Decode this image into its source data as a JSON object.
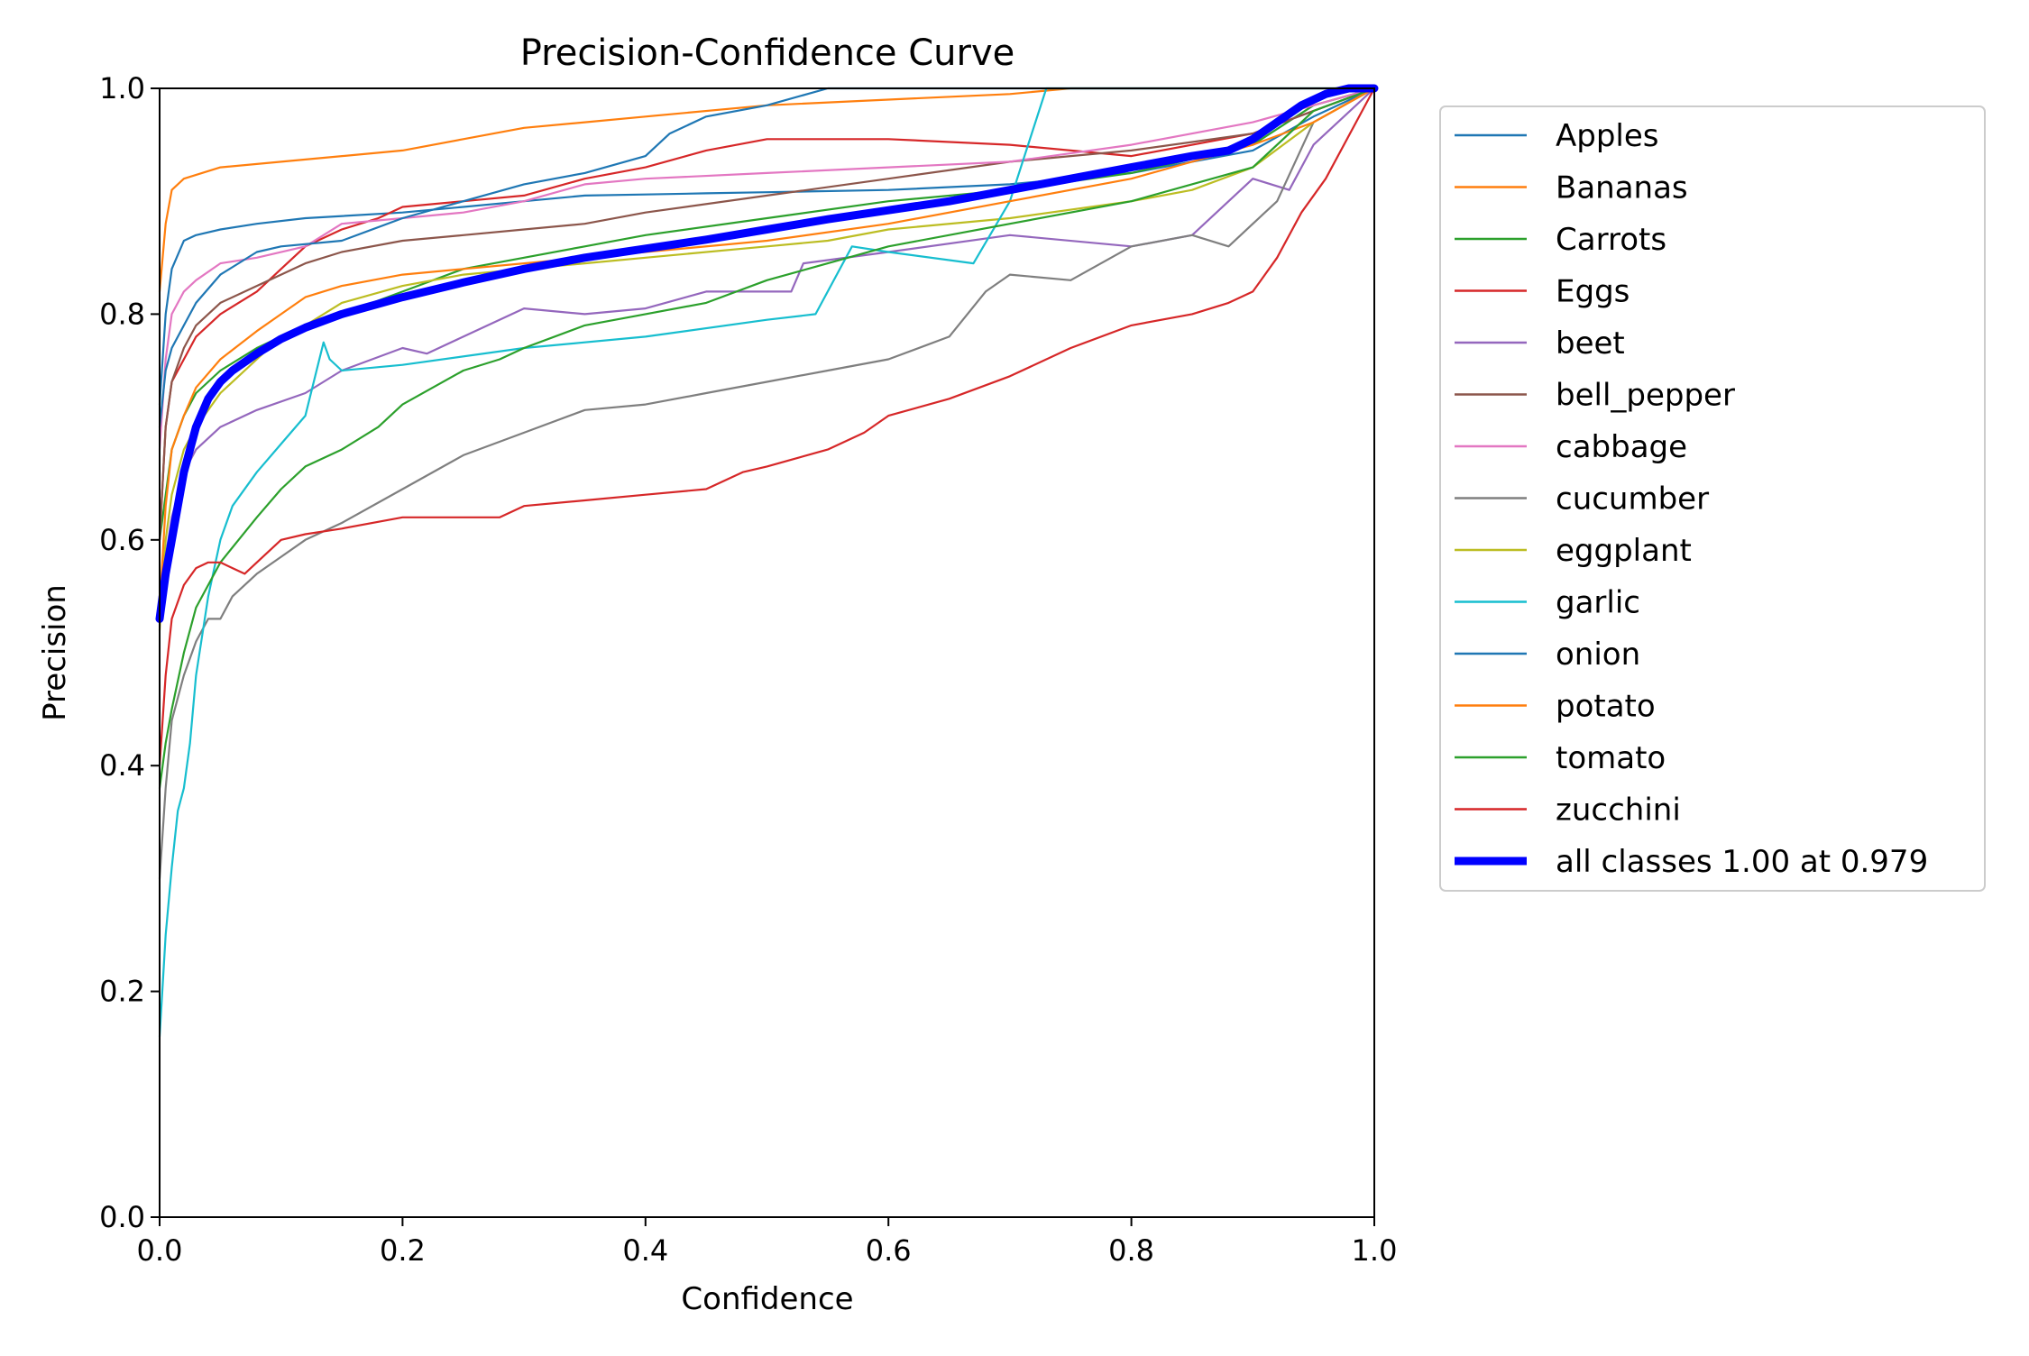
{
  "chart_data": {
    "type": "line",
    "title": "Precision-Confidence Curve",
    "xlabel": "Confidence",
    "ylabel": "Precision",
    "xlim": [
      0.0,
      1.0
    ],
    "ylim": [
      0.0,
      1.0
    ],
    "xticks": [
      "0.0",
      "0.2",
      "0.4",
      "0.6",
      "0.8",
      "1.0"
    ],
    "yticks": [
      "0.0",
      "0.2",
      "0.4",
      "0.6",
      "0.8",
      "1.0"
    ],
    "grid": false,
    "legend_position": "outside-right",
    "series": [
      {
        "name": "Apples",
        "color": "#1f77b4",
        "x": [
          0.0,
          0.005,
          0.01,
          0.02,
          0.03,
          0.05,
          0.08,
          0.12,
          0.2,
          0.25,
          0.3,
          0.35,
          0.4,
          0.45,
          0.5,
          0.6,
          0.7,
          0.8,
          0.9,
          0.95,
          1.0
        ],
        "y": [
          0.72,
          0.8,
          0.84,
          0.865,
          0.87,
          0.875,
          0.88,
          0.885,
          0.89,
          0.895,
          0.9,
          0.905,
          0.906,
          0.907,
          0.908,
          0.91,
          0.915,
          0.925,
          0.945,
          0.975,
          1.0
        ]
      },
      {
        "name": "Bananas",
        "color": "#ff7f0e",
        "x": [
          0.0,
          0.005,
          0.01,
          0.02,
          0.05,
          0.1,
          0.2,
          0.25,
          0.3,
          0.35,
          0.4,
          0.5,
          0.6,
          0.7,
          0.75,
          0.8,
          1.0
        ],
        "y": [
          0.82,
          0.88,
          0.91,
          0.92,
          0.93,
          0.935,
          0.945,
          0.955,
          0.965,
          0.97,
          0.975,
          0.985,
          0.99,
          0.995,
          1.0,
          1.0,
          1.0
        ]
      },
      {
        "name": "Carrots",
        "color": "#2ca02c",
        "x": [
          0.0,
          0.01,
          0.02,
          0.03,
          0.05,
          0.08,
          0.1,
          0.15,
          0.2,
          0.25,
          0.3,
          0.35,
          0.4,
          0.5,
          0.6,
          0.7,
          0.8,
          0.9,
          0.95,
          1.0
        ],
        "y": [
          0.6,
          0.68,
          0.71,
          0.73,
          0.75,
          0.77,
          0.78,
          0.8,
          0.82,
          0.84,
          0.85,
          0.86,
          0.87,
          0.885,
          0.9,
          0.91,
          0.925,
          0.95,
          0.985,
          1.0
        ]
      },
      {
        "name": "Eggs",
        "color": "#d62728",
        "x": [
          0.0,
          0.005,
          0.01,
          0.02,
          0.03,
          0.05,
          0.08,
          0.1,
          0.12,
          0.15,
          0.18,
          0.2,
          0.25,
          0.3,
          0.35,
          0.4,
          0.45,
          0.5,
          0.6,
          0.7,
          0.8,
          0.9,
          0.95,
          1.0
        ],
        "y": [
          0.6,
          0.7,
          0.74,
          0.76,
          0.78,
          0.8,
          0.82,
          0.84,
          0.86,
          0.875,
          0.885,
          0.895,
          0.9,
          0.905,
          0.92,
          0.93,
          0.945,
          0.955,
          0.955,
          0.95,
          0.94,
          0.96,
          0.98,
          1.0
        ]
      },
      {
        "name": "beet",
        "color": "#9467bd",
        "x": [
          0.0,
          0.01,
          0.02,
          0.03,
          0.05,
          0.08,
          0.12,
          0.15,
          0.2,
          0.22,
          0.25,
          0.3,
          0.35,
          0.4,
          0.45,
          0.5,
          0.52,
          0.53,
          0.6,
          0.7,
          0.8,
          0.85,
          0.9,
          0.93,
          0.95,
          1.0
        ],
        "y": [
          0.55,
          0.62,
          0.66,
          0.68,
          0.7,
          0.715,
          0.73,
          0.75,
          0.77,
          0.765,
          0.78,
          0.805,
          0.8,
          0.805,
          0.82,
          0.82,
          0.82,
          0.845,
          0.855,
          0.87,
          0.86,
          0.87,
          0.92,
          0.91,
          0.95,
          1.0
        ]
      },
      {
        "name": "bell_pepper",
        "color": "#8c564b",
        "x": [
          0.0,
          0.005,
          0.01,
          0.02,
          0.03,
          0.05,
          0.08,
          0.1,
          0.12,
          0.15,
          0.2,
          0.25,
          0.3,
          0.35,
          0.4,
          0.5,
          0.6,
          0.7,
          0.8,
          0.9,
          0.95,
          1.0
        ],
        "y": [
          0.6,
          0.7,
          0.74,
          0.77,
          0.79,
          0.81,
          0.825,
          0.835,
          0.845,
          0.855,
          0.865,
          0.87,
          0.875,
          0.88,
          0.89,
          0.905,
          0.92,
          0.935,
          0.945,
          0.96,
          0.98,
          1.0
        ]
      },
      {
        "name": "cabbage",
        "color": "#e377c2",
        "x": [
          0.0,
          0.005,
          0.01,
          0.02,
          0.03,
          0.05,
          0.08,
          0.12,
          0.15,
          0.2,
          0.25,
          0.3,
          0.35,
          0.4,
          0.5,
          0.6,
          0.7,
          0.8,
          0.9,
          0.95,
          1.0
        ],
        "y": [
          0.68,
          0.76,
          0.8,
          0.82,
          0.83,
          0.845,
          0.85,
          0.86,
          0.88,
          0.885,
          0.89,
          0.9,
          0.915,
          0.92,
          0.925,
          0.93,
          0.935,
          0.95,
          0.97,
          0.985,
          1.0
        ]
      },
      {
        "name": "cucumber",
        "color": "#7f7f7f",
        "x": [
          0.0,
          0.005,
          0.01,
          0.02,
          0.03,
          0.04,
          0.05,
          0.06,
          0.08,
          0.1,
          0.12,
          0.15,
          0.2,
          0.25,
          0.3,
          0.35,
          0.4,
          0.45,
          0.5,
          0.55,
          0.6,
          0.65,
          0.68,
          0.7,
          0.75,
          0.8,
          0.85,
          0.88,
          0.9,
          0.92,
          0.95,
          1.0
        ],
        "y": [
          0.3,
          0.38,
          0.44,
          0.48,
          0.51,
          0.53,
          0.53,
          0.55,
          0.57,
          0.585,
          0.6,
          0.615,
          0.645,
          0.675,
          0.695,
          0.715,
          0.72,
          0.73,
          0.74,
          0.75,
          0.76,
          0.78,
          0.82,
          0.835,
          0.83,
          0.86,
          0.87,
          0.86,
          0.88,
          0.9,
          0.97,
          1.0
        ]
      },
      {
        "name": "eggplant",
        "color": "#bcbd22",
        "x": [
          0.0,
          0.005,
          0.01,
          0.02,
          0.03,
          0.05,
          0.08,
          0.1,
          0.12,
          0.15,
          0.2,
          0.25,
          0.3,
          0.35,
          0.4,
          0.5,
          0.55,
          0.6,
          0.7,
          0.8,
          0.85,
          0.9,
          0.95,
          1.0
        ],
        "y": [
          0.52,
          0.6,
          0.64,
          0.68,
          0.7,
          0.73,
          0.76,
          0.78,
          0.79,
          0.81,
          0.825,
          0.835,
          0.84,
          0.845,
          0.85,
          0.86,
          0.865,
          0.875,
          0.885,
          0.9,
          0.91,
          0.93,
          0.97,
          1.0
        ]
      },
      {
        "name": "garlic",
        "color": "#17becf",
        "x": [
          0.0,
          0.005,
          0.01,
          0.015,
          0.02,
          0.025,
          0.03,
          0.04,
          0.05,
          0.06,
          0.08,
          0.1,
          0.12,
          0.135,
          0.14,
          0.15,
          0.2,
          0.3,
          0.4,
          0.5,
          0.54,
          0.57,
          0.6,
          0.67,
          0.7,
          0.73,
          0.8,
          0.9,
          1.0
        ],
        "y": [
          0.16,
          0.25,
          0.31,
          0.36,
          0.38,
          0.42,
          0.48,
          0.55,
          0.6,
          0.63,
          0.66,
          0.685,
          0.71,
          0.775,
          0.76,
          0.75,
          0.755,
          0.77,
          0.78,
          0.795,
          0.8,
          0.86,
          0.855,
          0.845,
          0.9,
          1.0,
          1.0,
          1.0,
          1.0
        ]
      },
      {
        "name": "onion",
        "color": "#1f77b4",
        "x": [
          0.0,
          0.005,
          0.01,
          0.02,
          0.03,
          0.05,
          0.08,
          0.1,
          0.15,
          0.2,
          0.25,
          0.3,
          0.35,
          0.4,
          0.42,
          0.45,
          0.5,
          0.55,
          0.6,
          0.7,
          0.8,
          0.9,
          1.0
        ],
        "y": [
          0.7,
          0.75,
          0.77,
          0.79,
          0.81,
          0.835,
          0.855,
          0.86,
          0.865,
          0.885,
          0.9,
          0.915,
          0.925,
          0.94,
          0.96,
          0.975,
          0.985,
          1.0,
          1.0,
          1.0,
          1.0,
          1.0,
          1.0
        ]
      },
      {
        "name": "potato",
        "color": "#ff7f0e",
        "x": [
          0.0,
          0.005,
          0.01,
          0.02,
          0.03,
          0.05,
          0.08,
          0.1,
          0.12,
          0.15,
          0.2,
          0.25,
          0.3,
          0.4,
          0.5,
          0.6,
          0.7,
          0.8,
          0.9,
          0.95,
          1.0
        ],
        "y": [
          0.54,
          0.63,
          0.68,
          0.71,
          0.735,
          0.76,
          0.785,
          0.8,
          0.815,
          0.825,
          0.835,
          0.84,
          0.845,
          0.855,
          0.865,
          0.88,
          0.9,
          0.92,
          0.95,
          0.97,
          1.0
        ]
      },
      {
        "name": "tomato",
        "color": "#2ca02c",
        "x": [
          0.0,
          0.005,
          0.01,
          0.02,
          0.03,
          0.04,
          0.05,
          0.08,
          0.1,
          0.12,
          0.15,
          0.18,
          0.2,
          0.25,
          0.28,
          0.3,
          0.35,
          0.4,
          0.45,
          0.5,
          0.55,
          0.6,
          0.7,
          0.8,
          0.9,
          0.95,
          1.0
        ],
        "y": [
          0.38,
          0.42,
          0.45,
          0.5,
          0.54,
          0.56,
          0.58,
          0.62,
          0.645,
          0.665,
          0.68,
          0.7,
          0.72,
          0.75,
          0.76,
          0.77,
          0.79,
          0.8,
          0.81,
          0.83,
          0.845,
          0.86,
          0.88,
          0.9,
          0.93,
          0.98,
          1.0
        ]
      },
      {
        "name": "zucchini",
        "color": "#d62728",
        "x": [
          0.0,
          0.005,
          0.01,
          0.02,
          0.03,
          0.04,
          0.05,
          0.06,
          0.07,
          0.08,
          0.1,
          0.12,
          0.15,
          0.2,
          0.25,
          0.28,
          0.3,
          0.35,
          0.4,
          0.45,
          0.48,
          0.5,
          0.55,
          0.58,
          0.6,
          0.65,
          0.7,
          0.75,
          0.8,
          0.85,
          0.88,
          0.9,
          0.92,
          0.94,
          0.96,
          1.0
        ],
        "y": [
          0.4,
          0.48,
          0.53,
          0.56,
          0.575,
          0.58,
          0.58,
          0.575,
          0.57,
          0.58,
          0.6,
          0.605,
          0.61,
          0.62,
          0.62,
          0.62,
          0.63,
          0.635,
          0.64,
          0.645,
          0.66,
          0.665,
          0.68,
          0.695,
          0.71,
          0.725,
          0.745,
          0.77,
          0.79,
          0.8,
          0.81,
          0.82,
          0.85,
          0.89,
          0.92,
          1.0
        ]
      },
      {
        "name": "all classes 1.00 at 0.979",
        "color": "#0000ff",
        "bold": true,
        "x": [
          0.0,
          0.005,
          0.01,
          0.015,
          0.02,
          0.03,
          0.04,
          0.05,
          0.06,
          0.08,
          0.1,
          0.12,
          0.15,
          0.2,
          0.25,
          0.3,
          0.35,
          0.4,
          0.45,
          0.5,
          0.55,
          0.6,
          0.65,
          0.7,
          0.75,
          0.8,
          0.85,
          0.88,
          0.9,
          0.92,
          0.94,
          0.96,
          0.979,
          1.0
        ],
        "y": [
          0.53,
          0.57,
          0.6,
          0.63,
          0.66,
          0.7,
          0.725,
          0.74,
          0.75,
          0.765,
          0.778,
          0.788,
          0.8,
          0.815,
          0.828,
          0.84,
          0.85,
          0.858,
          0.866,
          0.875,
          0.884,
          0.892,
          0.9,
          0.91,
          0.92,
          0.93,
          0.94,
          0.945,
          0.955,
          0.97,
          0.985,
          0.995,
          1.0,
          1.0
        ]
      }
    ]
  }
}
